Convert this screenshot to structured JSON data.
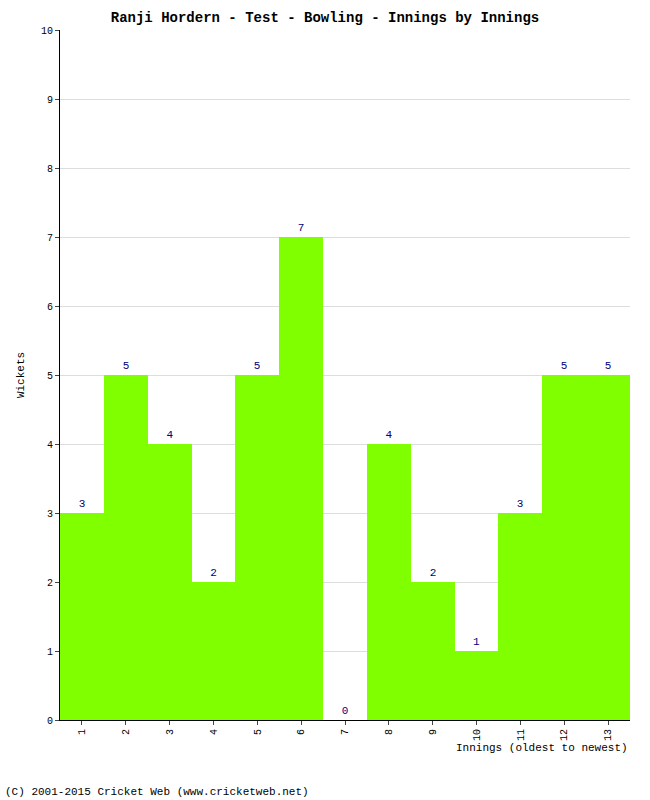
{
  "chart_data": {
    "type": "bar",
    "title": "Ranji Hordern - Test - Bowling - Innings by Innings",
    "xlabel": "Innings (oldest to newest)",
    "ylabel": "Wickets",
    "categories": [
      "1",
      "2",
      "3",
      "4",
      "5",
      "6",
      "7",
      "8",
      "9",
      "10",
      "11",
      "12",
      "13"
    ],
    "values": [
      3,
      5,
      4,
      2,
      5,
      7,
      0,
      4,
      2,
      1,
      3,
      5,
      5
    ],
    "color": "#7fff00",
    "ylim": [
      0,
      10
    ],
    "yticks": [
      0,
      1,
      2,
      3,
      4,
      5,
      6,
      7,
      8,
      9,
      10
    ],
    "grid": true,
    "data_labels": true,
    "annotations": [
      "(C) 2001-2015 Cricket Web (www.cricketweb.net)"
    ]
  }
}
